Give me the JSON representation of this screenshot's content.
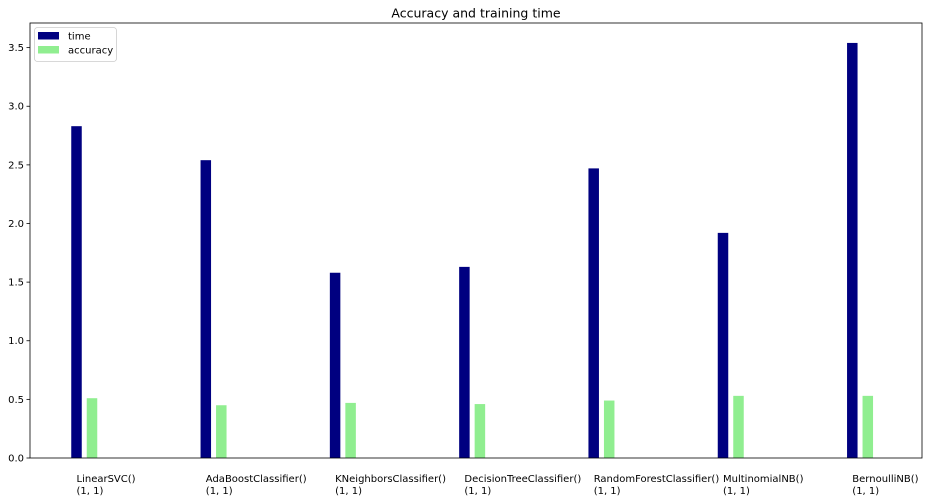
{
  "chart_data": {
    "type": "bar",
    "title": "Accuracy and training time",
    "xlabel": "",
    "ylabel": "",
    "categories": [
      [
        "LinearSVC()",
        "(1, 1)"
      ],
      [
        "AdaBoostClassifier()",
        "(1, 1)"
      ],
      [
        "KNeighborsClassifier()",
        "(1, 1)"
      ],
      [
        "DecisionTreeClassifier()",
        "(1, 1)"
      ],
      [
        "RandomForestClassifier()",
        "(1, 1)"
      ],
      [
        "MultinomialNB()",
        "(1, 1)"
      ],
      [
        "BernoulliNB()",
        "(1, 1)"
      ]
    ],
    "series": [
      {
        "name": "time",
        "color": "#000080",
        "values": [
          2.83,
          2.54,
          1.58,
          1.63,
          2.47,
          1.92,
          3.54
        ]
      },
      {
        "name": "accuracy",
        "color": "#90ee90",
        "values": [
          0.51,
          0.45,
          0.47,
          0.46,
          0.49,
          0.53,
          0.53
        ]
      }
    ],
    "ylim": [
      0,
      3.71
    ],
    "yticks": [
      0.0,
      0.5,
      1.0,
      1.5,
      2.0,
      2.5,
      3.0,
      3.5
    ],
    "ytick_labels": [
      "0.0",
      "0.5",
      "1.0",
      "1.5",
      "2.0",
      "2.5",
      "3.0",
      "3.5"
    ],
    "grid": false,
    "legend_position": "top-left"
  }
}
